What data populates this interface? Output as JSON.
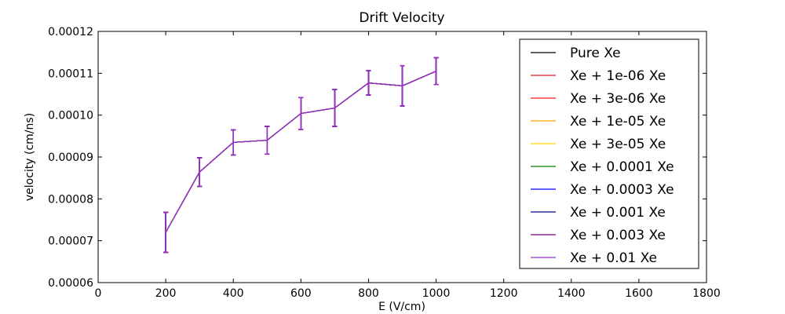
{
  "chart_data": {
    "type": "line",
    "title": "Drift Velocity",
    "xlabel": "E (V/cm)",
    "ylabel": "velocity (cm/ns)",
    "xlim": [
      0,
      1800
    ],
    "ylim": [
      6e-05,
      0.00012
    ],
    "xticks": [
      0,
      200,
      400,
      600,
      800,
      1000,
      1200,
      1400,
      1600,
      1800
    ],
    "xtick_labels": [
      "0",
      "200",
      "400",
      "600",
      "800",
      "1000",
      "1200",
      "1400",
      "1600",
      "1800"
    ],
    "yticks": [
      6e-05,
      7e-05,
      8e-05,
      9e-05,
      0.0001,
      0.00011,
      0.00012
    ],
    "ytick_labels": [
      "0.00006",
      "0.00007",
      "0.00008",
      "0.00009",
      "0.00010",
      "0.00011",
      "0.00012"
    ],
    "grid": false,
    "legend_position": "top-right",
    "x": [
      200,
      300,
      400,
      500,
      600,
      700,
      800,
      900,
      1000
    ],
    "series": [
      {
        "name": "Pure Xe",
        "color": "#000000",
        "values": [
          7.2e-05,
          8.64e-05,
          9.35e-05,
          9.4e-05,
          0.0001004,
          0.0001017,
          0.0001077,
          0.000107,
          0.0001105
        ],
        "errors": [
          4.8e-06,
          3.4e-06,
          3e-06,
          3.3e-06,
          3.8e-06,
          4.4e-06,
          2.9e-06,
          4.8e-06,
          3.2e-06
        ]
      },
      {
        "name": "Xe + 1e-06 Xe",
        "color": "#d62020",
        "values": [
          7.2e-05,
          8.64e-05,
          9.35e-05,
          9.4e-05,
          0.0001004,
          0.0001017,
          0.0001077,
          0.000107,
          0.0001105
        ],
        "errors": [
          4.8e-06,
          3.4e-06,
          3e-06,
          3.3e-06,
          3.8e-06,
          4.4e-06,
          2.9e-06,
          4.8e-06,
          3.2e-06
        ]
      },
      {
        "name": "Xe + 3e-06 Xe",
        "color": "#ff1a1a",
        "values": [
          7.2e-05,
          8.64e-05,
          9.35e-05,
          9.4e-05,
          0.0001004,
          0.0001017,
          0.0001077,
          0.000107,
          0.0001105
        ],
        "errors": [
          4.8e-06,
          3.4e-06,
          3e-06,
          3.3e-06,
          3.8e-06,
          4.4e-06,
          2.9e-06,
          4.8e-06,
          3.2e-06
        ]
      },
      {
        "name": "Xe + 1e-05 Xe",
        "color": "#ffa500",
        "values": [
          7.2e-05,
          8.64e-05,
          9.35e-05,
          9.4e-05,
          0.0001004,
          0.0001017,
          0.0001077,
          0.000107,
          0.0001105
        ],
        "errors": [
          4.8e-06,
          3.4e-06,
          3e-06,
          3.3e-06,
          3.8e-06,
          4.4e-06,
          2.9e-06,
          4.8e-06,
          3.2e-06
        ]
      },
      {
        "name": "Xe + 3e-05 Xe",
        "color": "#ffd700",
        "values": [
          7.2e-05,
          8.64e-05,
          9.35e-05,
          9.4e-05,
          0.0001004,
          0.0001017,
          0.0001077,
          0.000107,
          0.0001105
        ],
        "errors": [
          4.8e-06,
          3.4e-06,
          3e-06,
          3.3e-06,
          3.8e-06,
          4.4e-06,
          2.9e-06,
          4.8e-06,
          3.2e-06
        ]
      },
      {
        "name": "Xe + 0.0001 Xe",
        "color": "#008000",
        "values": [
          7.2e-05,
          8.64e-05,
          9.35e-05,
          9.4e-05,
          0.0001004,
          0.0001017,
          0.0001077,
          0.000107,
          0.0001105
        ],
        "errors": [
          4.8e-06,
          3.4e-06,
          3e-06,
          3.3e-06,
          3.8e-06,
          4.4e-06,
          2.9e-06,
          4.8e-06,
          3.2e-06
        ]
      },
      {
        "name": "Xe + 0.0003 Xe",
        "color": "#0000ff",
        "values": [
          7.2e-05,
          8.64e-05,
          9.35e-05,
          9.4e-05,
          0.0001004,
          0.0001017,
          0.0001077,
          0.000107,
          0.0001105
        ],
        "errors": [
          4.8e-06,
          3.4e-06,
          3e-06,
          3.3e-06,
          3.8e-06,
          4.4e-06,
          2.9e-06,
          4.8e-06,
          3.2e-06
        ]
      },
      {
        "name": "Xe + 0.001 Xe",
        "color": "#00008b",
        "values": [
          7.2e-05,
          8.64e-05,
          9.35e-05,
          9.4e-05,
          0.0001004,
          0.0001017,
          0.0001077,
          0.000107,
          0.0001105
        ],
        "errors": [
          4.8e-06,
          3.4e-06,
          3e-06,
          3.3e-06,
          3.8e-06,
          4.4e-06,
          2.9e-06,
          4.8e-06,
          3.2e-06
        ]
      },
      {
        "name": "Xe + 0.003 Xe",
        "color": "#800080",
        "values": [
          7.2e-05,
          8.64e-05,
          9.35e-05,
          9.4e-05,
          0.0001004,
          0.0001017,
          0.0001077,
          0.000107,
          0.0001105
        ],
        "errors": [
          4.8e-06,
          3.4e-06,
          3e-06,
          3.3e-06,
          3.8e-06,
          4.4e-06,
          2.9e-06,
          4.8e-06,
          3.2e-06
        ]
      },
      {
        "name": "Xe + 0.01 Xe",
        "color": "#9932cc",
        "values": [
          7.2e-05,
          8.64e-05,
          9.35e-05,
          9.4e-05,
          0.0001004,
          0.0001017,
          0.0001077,
          0.000107,
          0.0001105
        ],
        "errors": [
          4.8e-06,
          3.4e-06,
          3e-06,
          3.3e-06,
          3.8e-06,
          4.4e-06,
          2.9e-06,
          4.8e-06,
          3.2e-06
        ]
      }
    ]
  }
}
